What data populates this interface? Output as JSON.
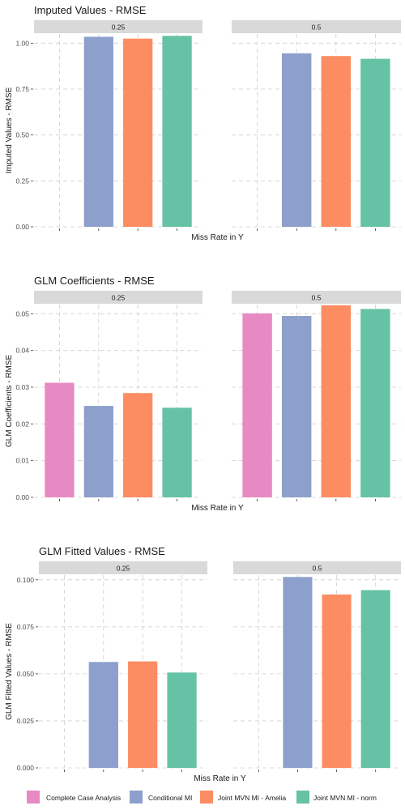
{
  "chart_data": [
    {
      "type": "bar",
      "title": "Imputed Values - RMSE",
      "xlabel": "Miss Rate in Y",
      "ylabel": "Imputed Values - RMSE",
      "ylim": [
        0,
        1.05
      ],
      "yticks": [
        0.0,
        0.25,
        0.5,
        0.75,
        1.0
      ],
      "ytick_labels": [
        "0.00",
        "0.25",
        "0.50",
        "0.75",
        "1.00"
      ],
      "panels": [
        {
          "strip": "0.25",
          "values": [
            null,
            1.035,
            1.025,
            1.04
          ]
        },
        {
          "strip": "0.5",
          "values": [
            null,
            0.945,
            0.93,
            0.915
          ]
        }
      ]
    },
    {
      "type": "bar",
      "title": "GLM Coefficients - RMSE",
      "xlabel": "Miss Rate in Y",
      "ylabel": "GLM Coefficients - RMSE",
      "ylim": [
        0,
        0.0525
      ],
      "yticks": [
        0.0,
        0.01,
        0.02,
        0.03,
        0.04,
        0.05
      ],
      "ytick_labels": [
        "0.00",
        "0.01",
        "0.02",
        "0.03",
        "0.04",
        "0.05"
      ],
      "panels": [
        {
          "strip": "0.25",
          "values": [
            0.0312,
            0.0249,
            0.0284,
            0.0244
          ]
        },
        {
          "strip": "0.5",
          "values": [
            0.0501,
            0.0494,
            0.0523,
            0.0513
          ]
        }
      ]
    },
    {
      "type": "bar",
      "title": "GLM Fitted Values - RMSE",
      "xlabel": "Miss Rate in Y",
      "ylabel": "GLM Fitted Values - RMSE",
      "ylim": [
        0,
        0.1025
      ],
      "yticks": [
        0.0,
        0.025,
        0.05,
        0.075,
        0.1
      ],
      "ytick_labels": [
        "0.000",
        "0.025",
        "0.050",
        "0.075",
        "0.100"
      ],
      "panels": [
        {
          "strip": "0.25",
          "values": [
            null,
            0.0563,
            0.0566,
            0.0507
          ]
        },
        {
          "strip": "0.5",
          "values": [
            null,
            0.1015,
            0.0922,
            0.0945
          ]
        }
      ]
    }
  ],
  "legend": {
    "position": "bottom",
    "items": [
      {
        "label": "Complete Case Analysis",
        "color": "#e78ac3"
      },
      {
        "label": "Conditional MI",
        "color": "#8da0cb"
      },
      {
        "label": "Joint MVN MI - Amelia",
        "color": "#fc8d62"
      },
      {
        "label": "Joint MVN MI - norm",
        "color": "#66c2a5"
      }
    ]
  },
  "colors": {
    "strip_background": "#d9d9d9",
    "gridline": "#cfcfcf"
  }
}
